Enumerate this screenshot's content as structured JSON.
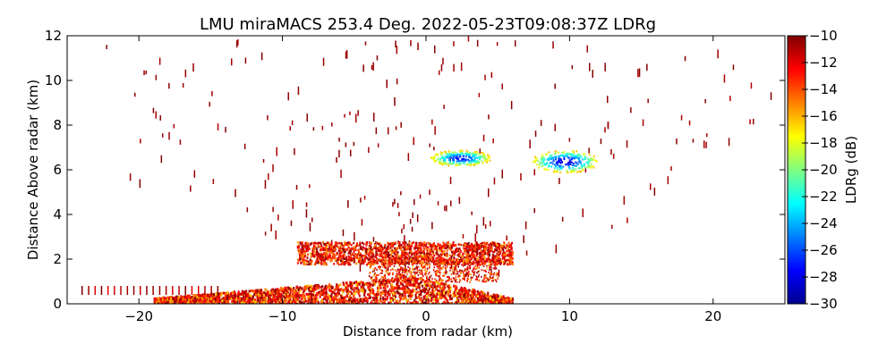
{
  "chart_data": {
    "type": "heatmap",
    "title": "LMU miraMACS 253.4 Deg. 2022-05-23T09:08:37Z  LDRg",
    "xlabel": "Distance from radar (km)",
    "ylabel": "Distance Above radar  (km)",
    "xlim": [
      -25,
      25
    ],
    "ylim": [
      0,
      12
    ],
    "x_ticks": [
      -20,
      -10,
      0,
      10,
      20
    ],
    "y_ticks": [
      0,
      2,
      4,
      6,
      8,
      10,
      12
    ],
    "colorbar": {
      "label": "LDRg (dB)",
      "range": [
        -30,
        -10
      ],
      "ticks": [
        -10,
        -12,
        -14,
        -16,
        -18,
        -20,
        -22,
        -24,
        -26,
        -28,
        -30
      ],
      "colormap": "jet"
    },
    "features": [
      {
        "name": "surface clutter band",
        "x_range": [
          -19,
          6
        ],
        "y_range": [
          0,
          1.2
        ],
        "ldr_range": [
          -17,
          -10
        ]
      },
      {
        "name": "low cloud layer",
        "x_range": [
          -9,
          6
        ],
        "y_range": [
          1.8,
          2.8
        ],
        "ldr_range": [
          -16,
          -10
        ]
      },
      {
        "name": "mid-level depolarization patch A",
        "x_range": [
          0.2,
          4.5
        ],
        "y_range": [
          6.2,
          6.9
        ],
        "ldr_range": [
          -28,
          -16
        ]
      },
      {
        "name": "mid-level depolarization patch B",
        "x_range": [
          7.3,
          12
        ],
        "y_range": [
          5.9,
          6.9
        ],
        "ldr_range": [
          -29,
          -16
        ]
      },
      {
        "name": "scattered noise returns",
        "x_range": [
          -24,
          22
        ],
        "y_range": [
          0,
          12
        ],
        "ldr_range": [
          -11,
          -10
        ]
      }
    ]
  },
  "colors": {
    "background": "#ffffff",
    "axis": "#000000",
    "noise": "#800000"
  }
}
